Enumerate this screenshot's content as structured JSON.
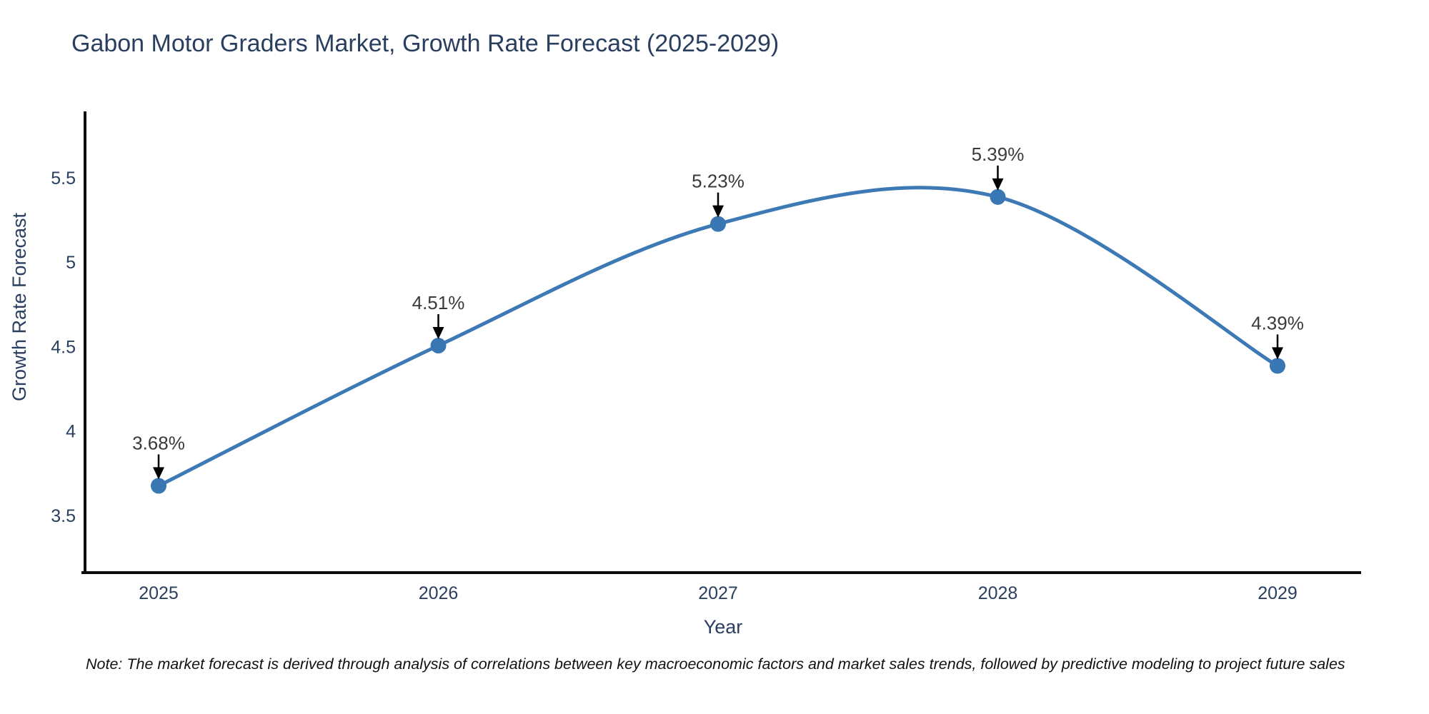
{
  "title": "Gabon Motor Graders Market, Growth Rate Forecast (2025-2029)",
  "note": "Note: The market forecast is derived through analysis of correlations between key macroeconomic factors and market sales trends, followed by predictive modeling to project future sales",
  "chart_data": {
    "type": "line",
    "title": "Gabon Motor Graders Market, Growth Rate Forecast (2025-2029)",
    "x": [
      "2025",
      "2026",
      "2027",
      "2028",
      "2029"
    ],
    "values": [
      3.68,
      4.51,
      5.23,
      5.39,
      4.39
    ],
    "point_labels": [
      "3.68%",
      "4.51%",
      "5.23%",
      "5.39%",
      "4.39%"
    ],
    "xlabel": "Year",
    "ylabel": "Growth Rate Forecast",
    "yticks": [
      3.5,
      4,
      4.5,
      5,
      5.5
    ],
    "ylim": [
      3.17,
      5.88
    ],
    "line_shape": "spline",
    "markers": true,
    "grid": false,
    "legend_position": "none",
    "colors": {
      "line": "#3d7ab5",
      "marker": "#3876b4",
      "axis": "#0d0d0d",
      "axis_text": "#2a3f5f",
      "annotation_text": "#3a3a3a",
      "annotation_arrow": "#000000"
    }
  }
}
